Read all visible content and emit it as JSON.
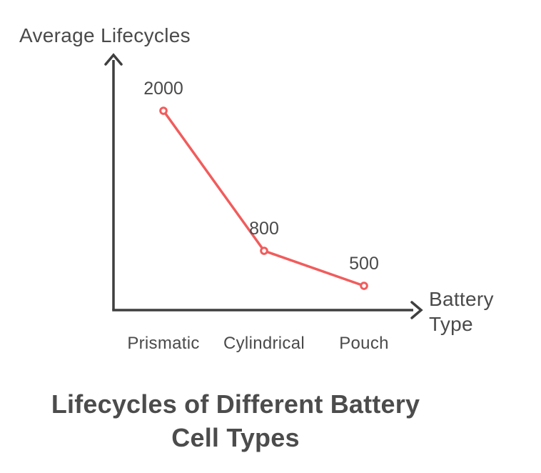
{
  "chart_data": {
    "type": "line",
    "title": "Lifecycles of Different Battery Cell Types",
    "ylabel": "Average Lifecycles",
    "xlabel": "Battery Type",
    "categories": [
      "Prismatic",
      "Cylindrical",
      "Pouch"
    ],
    "values": [
      2000,
      800,
      500
    ],
    "data_labels": [
      "2000",
      "800",
      "500"
    ],
    "marker": "open-circle",
    "grid": false,
    "legend": "none",
    "colors": {
      "line": "#F15C5C",
      "marker_fill": "#FFFFFF",
      "axis": "#3F3F3F",
      "text": "#4A4A4A",
      "background": "#FFFFFF"
    }
  }
}
